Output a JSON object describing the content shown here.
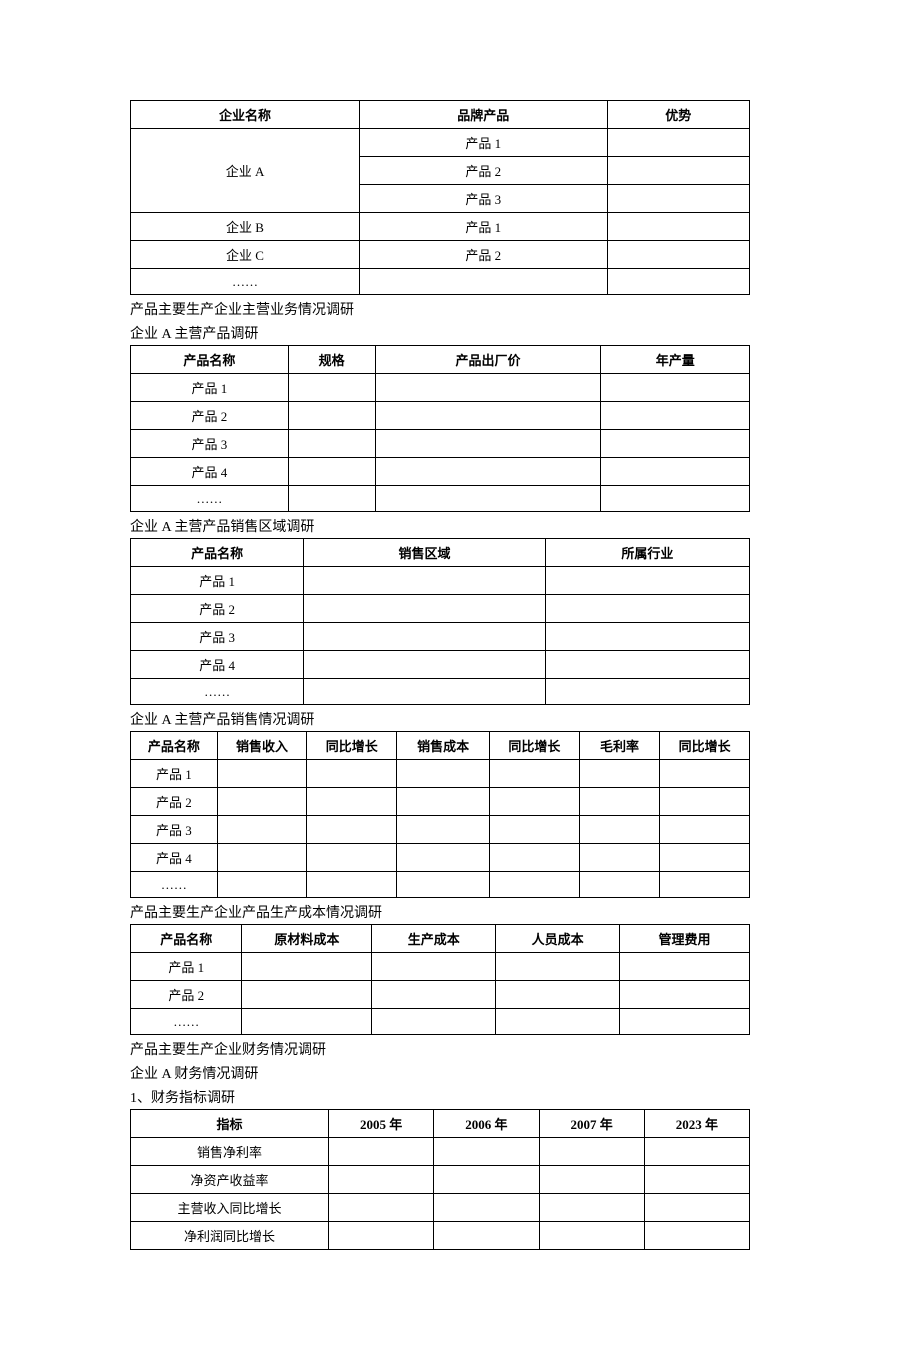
{
  "table1": {
    "headers": [
      "企业名称",
      "品牌产品",
      "优势"
    ],
    "col_widths": [
      "37%",
      "40%",
      "23%"
    ],
    "rows": [
      {
        "c0": "企业 A",
        "c0_rowspan": 3,
        "c1": "产品 1",
        "c2": ""
      },
      {
        "c1": "产品 2",
        "c2": ""
      },
      {
        "c1": "产品 3",
        "c2": ""
      },
      {
        "c0": "企业 B",
        "c1": "产品 1",
        "c2": ""
      },
      {
        "c0": "企业 C",
        "c1": "产品 2",
        "c2": ""
      },
      {
        "c0": "……",
        "c1": "",
        "c2": ""
      }
    ]
  },
  "caption2a": "产品主要生产企业主营业务情况调研",
  "caption2b": "企业 A 主营产品调研",
  "table2": {
    "headers": [
      "产品名称",
      "规格",
      "产品出厂价",
      "年产量"
    ],
    "col_widths": [
      "25.5%",
      "14%",
      "36.5%",
      "24%"
    ],
    "rows": [
      [
        "产品 1",
        "",
        "",
        ""
      ],
      [
        "产品 2",
        "",
        "",
        ""
      ],
      [
        "产品 3",
        "",
        "",
        ""
      ],
      [
        "产品 4",
        "",
        "",
        ""
      ],
      [
        "……",
        "",
        "",
        ""
      ]
    ]
  },
  "caption3": "企业 A 主营产品销售区域调研",
  "table3": {
    "headers": [
      "产品名称",
      "销售区域",
      "所属行业"
    ],
    "col_widths": [
      "28%",
      "39%",
      "33%"
    ],
    "rows": [
      [
        "产品 1",
        "",
        ""
      ],
      [
        "产品 2",
        "",
        ""
      ],
      [
        "产品 3",
        "",
        ""
      ],
      [
        "产品 4",
        "",
        ""
      ],
      [
        "……",
        "",
        ""
      ]
    ]
  },
  "caption4": "企业 A 主营产品销售情况调研",
  "table4": {
    "headers": [
      "产品名称",
      "销售收入",
      "同比增长",
      "销售成本",
      "同比增长",
      "毛利率",
      "同比增长"
    ],
    "col_widths": [
      "14%",
      "14.5%",
      "14.5%",
      "15%",
      "14.5%",
      "13%",
      "14.5%"
    ],
    "rows": [
      [
        "产品 1",
        "",
        "",
        "",
        "",
        "",
        ""
      ],
      [
        "产品 2",
        "",
        "",
        "",
        "",
        "",
        ""
      ],
      [
        "产品 3",
        "",
        "",
        "",
        "",
        "",
        ""
      ],
      [
        "产品 4",
        "",
        "",
        "",
        "",
        "",
        ""
      ],
      [
        "……",
        "",
        "",
        "",
        "",
        "",
        ""
      ]
    ]
  },
  "caption5": "产品主要生产企业产品生产成本情况调研",
  "table5": {
    "headers": [
      "产品名称",
      "原材料成本",
      "生产成本",
      "人员成本",
      "管理费用"
    ],
    "col_widths": [
      "18%",
      "21%",
      "20%",
      "20%",
      "21%"
    ],
    "rows": [
      [
        "产品 1",
        "",
        "",
        "",
        ""
      ],
      [
        "产品 2",
        "",
        "",
        "",
        ""
      ],
      [
        "……",
        "",
        "",
        "",
        ""
      ]
    ]
  },
  "caption6a": "产品主要生产企业财务情况调研",
  "caption6b": "企业 A 财务情况调研",
  "caption6c": "1、财务指标调研",
  "table6": {
    "headers": [
      "指标",
      "2005 年",
      "2006 年",
      "2007 年",
      "2023 年"
    ],
    "col_widths": [
      "32%",
      "17%",
      "17%",
      "17%",
      "17%"
    ],
    "rows": [
      [
        "销售净利率",
        "",
        "",
        "",
        ""
      ],
      [
        "净资产收益率",
        "",
        "",
        "",
        ""
      ],
      [
        "主营收入同比增长",
        "",
        "",
        "",
        ""
      ],
      [
        "净利润同比增长",
        "",
        "",
        "",
        ""
      ]
    ]
  }
}
